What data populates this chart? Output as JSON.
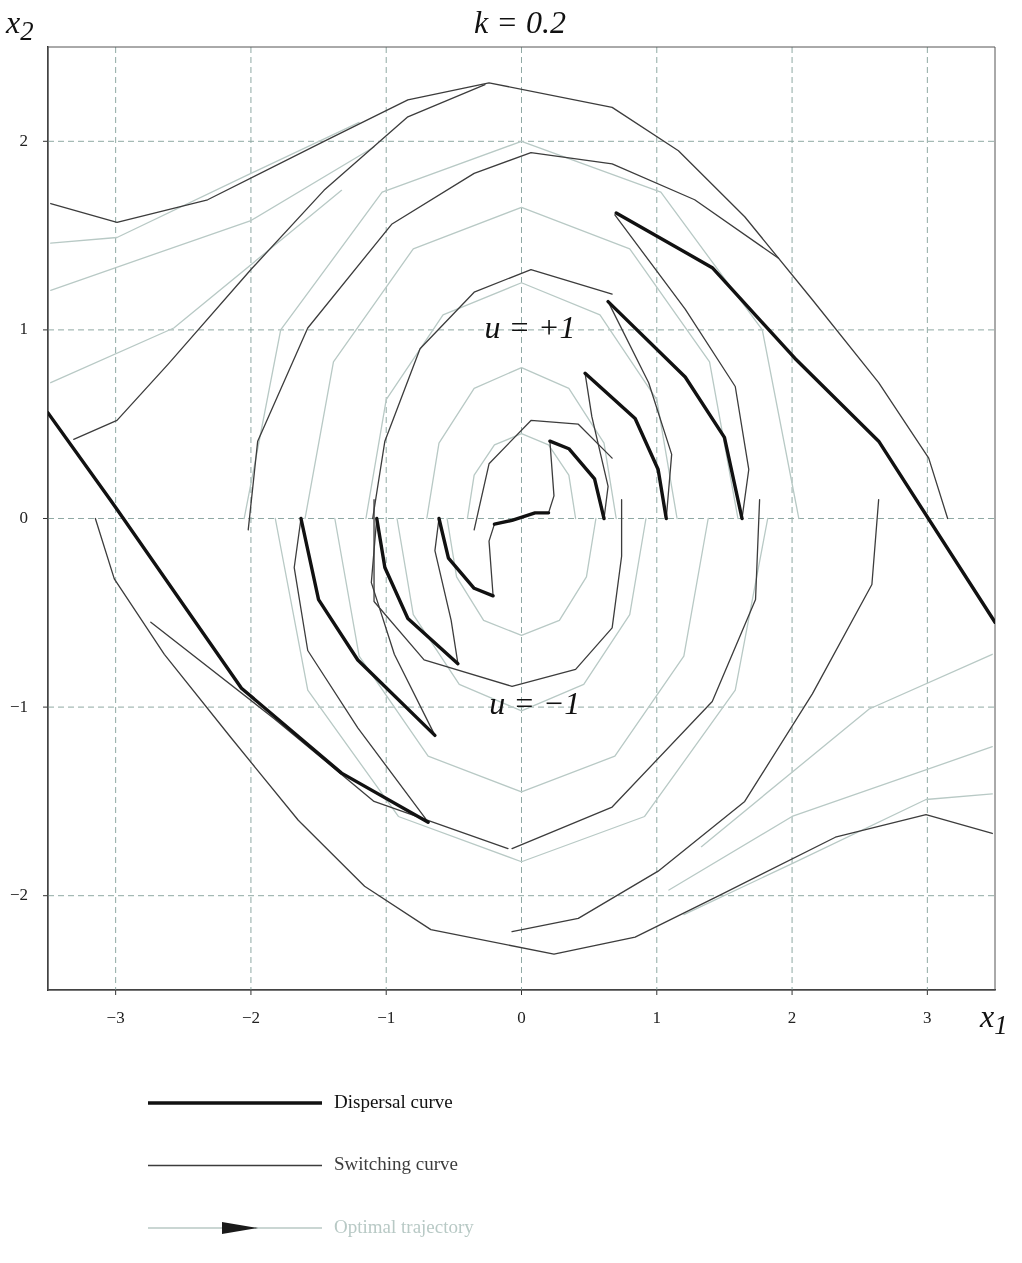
{
  "chart_data": {
    "type": "line",
    "title": "k = 0.2",
    "xlabel": "x$_{1}$",
    "ylabel": "x$_{2}$",
    "xlim": [
      -3.5,
      3.5
    ],
    "ylim": [
      -2.5,
      2.5
    ],
    "xticks": [
      {
        "value": -3,
        "label": "−3"
      },
      {
        "value": -2,
        "label": "−2"
      },
      {
        "value": -1,
        "label": "−1"
      },
      0,
      1,
      2,
      3
    ],
    "yticks": [
      {
        "value": -2,
        "label": "−2"
      },
      {
        "value": -1,
        "label": "−1"
      },
      0,
      1,
      2
    ],
    "grid": true,
    "legend": "bottom",
    "marker": "none",
    "line_style": "solid",
    "annotations": [
      "u = +1",
      "u = −1"
    ],
    "series": [
      {
        "name": "Dispersal curve",
        "color": "#111111",
        "x": [
          -3.5,
          -3.04,
          -2.07,
          -1.33,
          -0.69
        ],
        "values": [
          0.56,
          0.1,
          -0.9,
          -1.35,
          -1.61
        ]
      },
      {
        "color": "#111111",
        "x": [
          0.7,
          1.41,
          2.02,
          2.64,
          3.5
        ],
        "values": [
          1.62,
          1.33,
          0.85,
          0.41,
          -0.55
        ]
      },
      {
        "color": "#111111",
        "x": [
          -1.63,
          -1.5,
          -1.21,
          -0.64
        ],
        "values": [
          0,
          -0.43,
          -0.75,
          -1.15
        ]
      },
      {
        "color": "#111111",
        "x": [
          1.63,
          1.5,
          1.21,
          0.64
        ],
        "values": [
          0,
          0.43,
          0.75,
          1.15
        ]
      },
      {
        "color": "#111111",
        "x": [
          -1.07,
          -1.01,
          -0.84,
          -0.47
        ],
        "values": [
          0,
          -0.26,
          -0.53,
          -0.77
        ]
      },
      {
        "color": "#111111",
        "x": [
          1.07,
          1.01,
          0.84,
          0.47
        ],
        "values": [
          0,
          0.26,
          0.53,
          0.77
        ]
      },
      {
        "color": "#111111",
        "x": [
          -0.61,
          -0.54,
          -0.35,
          -0.21
        ],
        "values": [
          0,
          -0.21,
          -0.37,
          -0.41
        ]
      },
      {
        "color": "#111111",
        "x": [
          0.61,
          0.54,
          0.35,
          0.21
        ],
        "values": [
          0,
          0.21,
          0.37,
          0.41
        ]
      },
      {
        "color": "#111111",
        "x": [
          -0.2,
          -0.07,
          0.1,
          0.2
        ],
        "values": [
          -0.03,
          -0.01,
          0.03,
          0.03
        ]
      },
      {
        "name": "Switching curve",
        "color": "#3c3c3c",
        "x": [
          -3.48,
          -2.99,
          -2.32,
          -1.46,
          -0.84,
          -0.24,
          0.67,
          1.16,
          1.65,
          2.15,
          2.64,
          3.01,
          3.15
        ],
        "values": [
          1.67,
          1.57,
          1.69,
          2.0,
          2.22,
          2.31,
          2.18,
          1.95,
          1.6,
          1.16,
          0.72,
          0.32,
          0
        ]
      },
      {
        "color": "#3c3c3c",
        "x": [
          3.48,
          2.99,
          2.32,
          1.46,
          0.84,
          0.24,
          -0.67,
          -1.16,
          -1.65,
          -2.15,
          -2.64,
          -3.01,
          -3.15
        ],
        "values": [
          -1.67,
          -1.57,
          -1.69,
          -2.0,
          -2.22,
          -2.31,
          -2.18,
          -1.95,
          -1.6,
          -1.16,
          -0.72,
          -0.32,
          0
        ]
      },
      {
        "color": "#3c3c3c",
        "x": [
          -3.31,
          -2.99,
          -2.61,
          -2.0,
          -1.46,
          -0.84,
          -0.27
        ],
        "values": [
          0.42,
          0.52,
          0.82,
          1.32,
          1.74,
          2.13,
          2.3
        ]
      },
      {
        "color": "#3c3c3c",
        "x": [
          -2.74,
          -1.83,
          -1.09,
          -0.1
        ],
        "values": [
          -0.55,
          -1.06,
          -1.5,
          -1.75
        ]
      },
      {
        "color": "#3c3c3c",
        "x": [
          -2.02,
          -1.95,
          -1.58,
          -0.96,
          -0.35,
          0.07,
          0.67,
          1.28,
          1.9
        ],
        "values": [
          -0.06,
          0.41,
          1.01,
          1.56,
          1.83,
          1.94,
          1.88,
          1.69,
          1.38
        ]
      },
      {
        "color": "#3c3c3c",
        "x": [
          2.64,
          2.59,
          2.15,
          1.65,
          1.01,
          0.42,
          -0.07
        ],
        "values": [
          0.1,
          -0.35,
          -0.93,
          -1.5,
          -1.87,
          -2.12,
          -2.19
        ]
      },
      {
        "color": "#3c3c3c",
        "x": [
          1.76,
          1.73,
          1.41,
          0.67,
          -0.07
        ],
        "values": [
          0.1,
          -0.43,
          -0.97,
          -1.53,
          -1.75
        ]
      },
      {
        "color": "#3c3c3c",
        "x": [
          -1.63,
          -1.68,
          -1.58,
          -1.21,
          -0.69
        ],
        "values": [
          0,
          -0.26,
          -0.7,
          -1.11,
          -1.61
        ]
      },
      {
        "color": "#3c3c3c",
        "x": [
          0.69,
          1.21,
          1.58,
          1.68,
          1.63
        ],
        "values": [
          1.61,
          1.11,
          0.7,
          0.26,
          0
        ]
      },
      {
        "color": "#3c3c3c",
        "x": [
          -1.07,
          -1.11,
          -0.94,
          -0.64
        ],
        "values": [
          0,
          -0.34,
          -0.72,
          -1.15
        ]
      },
      {
        "color": "#3c3c3c",
        "x": [
          0.64,
          0.94,
          1.11,
          1.07
        ],
        "values": [
          1.15,
          0.72,
          0.34,
          0
        ]
      },
      {
        "color": "#3c3c3c",
        "x": [
          -0.61,
          -0.64,
          -0.52,
          -0.47
        ],
        "values": [
          0,
          -0.17,
          -0.54,
          -0.77
        ]
      },
      {
        "color": "#3c3c3c",
        "x": [
          0.47,
          0.52,
          0.64,
          0.61
        ],
        "values": [
          0.77,
          0.54,
          0.17,
          0
        ]
      },
      {
        "color": "#3c3c3c",
        "x": [
          -0.2,
          -0.24,
          -0.21
        ],
        "values": [
          -0.03,
          -0.12,
          -0.41
        ]
      },
      {
        "color": "#3c3c3c",
        "x": [
          0.21,
          0.24,
          0.2
        ],
        "values": [
          0.41,
          0.12,
          0.03
        ]
      },
      {
        "color": "#3c3c3c",
        "x": [
          -1.1,
          -1.01,
          -0.75,
          -0.35,
          0.07,
          0.67
        ],
        "values": [
          0,
          0.41,
          0.9,
          1.2,
          1.32,
          1.19
        ]
      },
      {
        "color": "#3c3c3c",
        "x": [
          -1.09,
          -1.09,
          -0.72,
          -0.07,
          0.4,
          0.67,
          0.74,
          0.74
        ],
        "values": [
          0.1,
          -0.44,
          -0.75,
          -0.89,
          -0.8,
          -0.58,
          -0.2,
          0.1
        ]
      },
      {
        "color": "#3c3c3c",
        "x": [
          -0.35,
          -0.24,
          0.07,
          0.42,
          0.67
        ],
        "values": [
          -0.06,
          0.29,
          0.52,
          0.5,
          0.32
        ]
      },
      {
        "name": "Optimal trajectory",
        "color": "#b8c9c5",
        "x": [
          0.4,
          0.35,
          0.2,
          0,
          -0.2,
          -0.35,
          -0.4
        ],
        "values": [
          0,
          0.23,
          0.39,
          0.45,
          0.39,
          0.23,
          0
        ]
      },
      {
        "color": "#b8c9c5",
        "x": [
          -0.55,
          -0.48,
          -0.28,
          0,
          0.28,
          0.48,
          0.55
        ],
        "values": [
          0,
          -0.31,
          -0.54,
          -0.62,
          -0.54,
          -0.31,
          0
        ]
      },
      {
        "color": "#b8c9c5",
        "x": [
          0.7,
          0.61,
          0.35,
          0,
          -0.35,
          -0.61,
          -0.7
        ],
        "values": [
          0,
          0.4,
          0.69,
          0.8,
          0.69,
          0.4,
          0
        ]
      },
      {
        "color": "#b8c9c5",
        "x": [
          -0.92,
          -0.8,
          -0.46,
          0,
          0.46,
          0.8,
          0.92
        ],
        "values": [
          0,
          -0.51,
          -0.88,
          -1.02,
          -0.88,
          -0.51,
          0
        ]
      },
      {
        "color": "#b8c9c5",
        "x": [
          1.15,
          1.0,
          0.58,
          0,
          -0.58,
          -1.0,
          -1.15
        ],
        "values": [
          0,
          0.63,
          1.08,
          1.25,
          1.08,
          0.63,
          0
        ]
      },
      {
        "color": "#b8c9c5",
        "x": [
          -1.38,
          -1.2,
          -0.69,
          0,
          0.69,
          1.2,
          1.38
        ],
        "values": [
          0,
          -0.73,
          -1.26,
          -1.45,
          -1.26,
          -0.73,
          0
        ]
      },
      {
        "color": "#b8c9c5",
        "x": [
          1.6,
          1.39,
          0.8,
          0,
          -0.8,
          -1.39,
          -1.6
        ],
        "values": [
          0,
          0.83,
          1.43,
          1.65,
          1.43,
          0.83,
          0
        ]
      },
      {
        "color": "#b8c9c5",
        "x": [
          -1.82,
          -1.58,
          -0.91,
          0,
          0.91,
          1.58,
          1.82
        ],
        "values": [
          0,
          -0.91,
          -1.58,
          -1.82,
          -1.58,
          -0.91,
          0
        ]
      },
      {
        "color": "#b8c9c5",
        "x": [
          2.05,
          1.78,
          1.03,
          0,
          -1.03,
          -1.78,
          -2.05
        ],
        "values": [
          0,
          1.0,
          1.73,
          2.0,
          1.73,
          1.0,
          0
        ]
      },
      {
        "color": "#b8c9c5",
        "x": [
          -3.48,
          -2.99,
          -2.0,
          -1.2
        ],
        "values": [
          1.46,
          1.49,
          1.83,
          2.1
        ]
      },
      {
        "color": "#b8c9c5",
        "x": [
          -3.48,
          -2.0,
          -1.09
        ],
        "values": [
          1.21,
          1.58,
          1.97
        ]
      },
      {
        "color": "#b8c9c5",
        "x": [
          -3.48,
          -2.57,
          -1.33
        ],
        "values": [
          0.72,
          1.01,
          1.74
        ]
      },
      {
        "color": "#b8c9c5",
        "x": [
          3.48,
          2.99,
          2.0,
          1.2
        ],
        "values": [
          -1.46,
          -1.49,
          -1.83,
          -2.1
        ]
      },
      {
        "color": "#b8c9c5",
        "x": [
          3.48,
          2.0,
          1.09
        ],
        "values": [
          -1.21,
          -1.58,
          -1.97
        ]
      },
      {
        "color": "#b8c9c5",
        "x": [
          3.48,
          2.57,
          1.33
        ],
        "values": [
          -0.72,
          -1.01,
          -1.74
        ]
      }
    ]
  }
}
